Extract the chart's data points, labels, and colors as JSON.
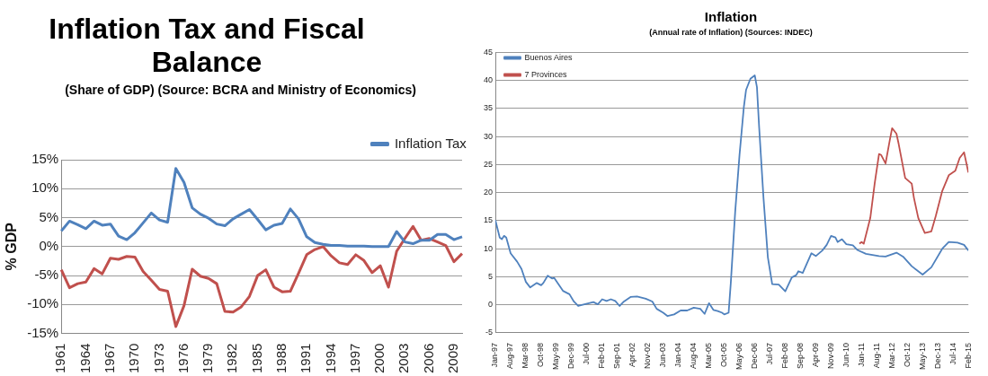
{
  "chart_data": [
    {
      "type": "line",
      "title": "Inflation Tax and Fiscal Balance",
      "subtitle": "(Share of GDP) (Source: BCRA and Ministry of Economics)",
      "ylabel": "% GDP",
      "categories": [
        "1961",
        null,
        null,
        "1964",
        null,
        null,
        "1967",
        null,
        null,
        "1970",
        null,
        null,
        "1973",
        null,
        null,
        "1976",
        null,
        null,
        "1979",
        null,
        null,
        "1982",
        null,
        null,
        "1985",
        null,
        null,
        "1988",
        null,
        null,
        "1991",
        null,
        null,
        "1994",
        null,
        null,
        "1997",
        null,
        null,
        "2000",
        null,
        null,
        "2003",
        null,
        null,
        "2006",
        null,
        null,
        "2009",
        null
      ],
      "series": [
        {
          "name": "Inflation Tax",
          "color": "#4f81bd",
          "values": [
            2.7,
            4.4,
            3.8,
            3.1,
            4.4,
            3.7,
            3.9,
            1.8,
            1.2,
            2.4,
            4.1,
            5.8,
            4.6,
            4.2,
            13.5,
            11.1,
            6.7,
            5.6,
            4.9,
            3.9,
            3.6,
            4.8,
            5.6,
            6.4,
            4.7,
            2.9,
            3.7,
            4.0,
            6.5,
            4.8,
            1.7,
            0.7,
            0.4,
            0.2,
            0.2,
            0.1,
            0.1,
            0.1,
            0,
            0,
            0,
            2.6,
            0.8,
            0.5,
            1.1,
            1.1,
            2.1,
            2.1,
            1.2,
            1.7
          ]
        },
        {
          "color": "#c0504d",
          "values": [
            -4.0,
            -7.1,
            -6.4,
            -6.1,
            -3.8,
            -4.7,
            -2.0,
            -2.2,
            -1.7,
            -1.8,
            -4.3,
            -5.8,
            -7.4,
            -7.7,
            -13.8,
            -10.2,
            -3.9,
            -5.1,
            -5.5,
            -6.4,
            -11.2,
            -11.3,
            -10.4,
            -8.6,
            -5.0,
            -4.0,
            -7.0,
            -7.8,
            -7.7,
            -4.6,
            -1.4,
            -0.5,
            0,
            -1.6,
            -2.8,
            -3.1,
            -1.4,
            -2.4,
            -4.5,
            -3.3,
            -7.0,
            -0.8,
            1.4,
            3.5,
            1.1,
            1.4,
            0.8,
            0.2,
            -2.6,
            -1.2
          ]
        }
      ],
      "ylim": [
        -15,
        15
      ],
      "yticks": [
        {
          "value": -15,
          "label": "-15%"
        },
        {
          "value": -10,
          "label": "-10%"
        },
        {
          "value": -5,
          "label": "-5%"
        },
        {
          "value": 0,
          "label": "0%"
        },
        {
          "value": 5,
          "label": "5%"
        },
        {
          "value": 10,
          "label": "10%"
        },
        {
          "value": 15,
          "label": "15%"
        }
      ],
      "grid": "y",
      "legend": "top right",
      "marker": "none",
      "line_style": "solid"
    },
    {
      "type": "line",
      "title": "Inflation",
      "subtitle": "(Annual rate of Inflation) (Sources: INDEC)",
      "series": [
        {
          "name": "Buenos Aires",
          "color": "#4f81bd",
          "x": [
            "1997-01",
            "1997-03",
            "1997-04",
            "1997-05",
            "1997-06",
            "1997-08",
            "1997-11",
            "1998-01",
            "1998-03",
            "1998-05",
            "1998-08",
            "1998-10",
            "1998-11",
            "1999-01",
            "1999-03",
            "1999-04",
            "1999-08",
            "1999-11",
            "2000-01",
            "2000-03",
            "2000-05",
            "2000-10",
            "2000-12",
            "2001-02",
            "2001-04",
            "2001-06",
            "2001-08",
            "2001-10",
            "2001-12",
            "2002-03",
            "2002-06",
            "2002-10",
            "2003-01",
            "2003-03",
            "2003-06",
            "2003-08",
            "2003-11",
            "2004-02",
            "2004-05",
            "2004-08",
            "2004-11",
            "2005-01",
            "2005-03",
            "2005-05",
            "2005-07",
            "2005-09",
            "2005-10",
            "2005-12",
            "2006-01",
            "2006-03",
            "2006-05",
            "2006-07",
            "2006-08",
            "2006-10",
            "2006-12",
            "2007-01",
            "2007-02",
            "2007-04",
            "2007-06",
            "2007-08",
            "2007-11",
            "2008-02",
            "2008-05",
            "2008-07",
            "2008-08",
            "2008-10",
            "2009-02",
            "2009-04",
            "2009-07",
            "2009-09",
            "2009-11",
            "2010-01",
            "2010-02",
            "2010-04",
            "2010-06",
            "2010-09",
            "2010-11",
            "2011-03",
            "2011-09",
            "2011-12",
            "2012-05",
            "2012-08",
            "2012-12",
            "2013-05",
            "2013-09",
            "2014-02",
            "2014-05",
            "2014-09",
            "2014-12",
            "2015-02"
          ],
          "values": [
            15.1,
            12.0,
            11.7,
            12.3,
            12.0,
            9.2,
            7.7,
            6.4,
            4.1,
            3.1,
            3.9,
            3.5,
            3.9,
            5.2,
            4.7,
            4.8,
            2.5,
            1.9,
            0.6,
            -0.2,
            0,
            0.5,
            0.1,
            1.0,
            0.7,
            1.0,
            0.7,
            -0.2,
            0.6,
            1.4,
            1.5,
            1.1,
            0.6,
            -0.7,
            -1.4,
            -2.0,
            -1.7,
            -1.0,
            -1.0,
            -0.5,
            -0.7,
            -1.6,
            0.3,
            -0.9,
            -1.1,
            -1.4,
            -1.7,
            -1.4,
            3.9,
            16.5,
            26.7,
            35.3,
            38.3,
            40.3,
            40.9,
            38.8,
            31.7,
            19.1,
            8.5,
            3.7,
            3.6,
            2.4,
            4.9,
            5.3,
            6.0,
            5.7,
            9.2,
            8.7,
            9.7,
            10.7,
            12.3,
            12.0,
            11.2,
            11.7,
            10.8,
            10.6,
            9.8,
            9.1,
            8.7,
            8.6,
            9.3,
            8.6,
            6.9,
            5.4,
            6.7,
            10.0,
            11.2,
            11.1,
            10.7,
            9.7
          ]
        },
        {
          "name": "7 Provinces",
          "color": "#c0504d",
          "x": [
            "2010-12",
            "2011-01",
            "2011-02",
            "2011-05",
            "2011-07",
            "2011-09",
            "2011-10",
            "2011-12",
            "2012-02",
            "2012-03",
            "2012-05",
            "2012-06",
            "2012-09",
            "2012-12",
            "2013-01",
            "2013-03",
            "2013-06",
            "2013-09",
            "2013-11",
            "2014-02",
            "2014-05",
            "2014-08",
            "2014-10",
            "2014-12",
            "2015-02"
          ],
          "values": [
            10.9,
            11.2,
            10.9,
            15.5,
            21.6,
            26.9,
            26.7,
            25.2,
            29.5,
            31.5,
            30.5,
            28.7,
            22.6,
            21.6,
            19.1,
            15.5,
            12.8,
            13.1,
            15.8,
            20.3,
            23.1,
            23.9,
            26.2,
            27.2,
            23.6
          ]
        }
      ],
      "xlim": [
        "1997-01",
        "2015-02"
      ],
      "xticks": [
        {
          "value": "1997-01",
          "label": "Jan-97"
        },
        {
          "value": "1997-08",
          "label": "Aug-97"
        },
        {
          "value": "1998-03",
          "label": "Mar-98"
        },
        {
          "value": "1998-10",
          "label": "Oct-98"
        },
        {
          "value": "1999-05",
          "label": "May-99"
        },
        {
          "value": "1999-12",
          "label": "Dec-99"
        },
        {
          "value": "2000-07",
          "label": "Jul-00"
        },
        {
          "value": "2001-02",
          "label": "Feb-01"
        },
        {
          "value": "2001-09",
          "label": "Sep-01"
        },
        {
          "value": "2002-04",
          "label": "Apr-02"
        },
        {
          "value": "2002-11",
          "label": "Nov-02"
        },
        {
          "value": "2003-06",
          "label": "Jun-03"
        },
        {
          "value": "2004-01",
          "label": "Jan-04"
        },
        {
          "value": "2004-08",
          "label": "Aug-04"
        },
        {
          "value": "2005-03",
          "label": "Mar-05"
        },
        {
          "value": "2005-10",
          "label": "Oct-05"
        },
        {
          "value": "2006-05",
          "label": "May-06"
        },
        {
          "value": "2006-12",
          "label": "Dec-06"
        },
        {
          "value": "2007-07",
          "label": "Jul-07"
        },
        {
          "value": "2008-02",
          "label": "Feb-08"
        },
        {
          "value": "2008-09",
          "label": "Sep-08"
        },
        {
          "value": "2009-04",
          "label": "Apr-09"
        },
        {
          "value": "2009-11",
          "label": "Nov-09"
        },
        {
          "value": "2010-06",
          "label": "Jun-10"
        },
        {
          "value": "2011-01",
          "label": "Jan-11"
        },
        {
          "value": "2011-08",
          "label": "Aug-11"
        },
        {
          "value": "2012-03",
          "label": "Mar-12"
        },
        {
          "value": "2012-10",
          "label": "Oct-12"
        },
        {
          "value": "2013-05",
          "label": "May-13"
        },
        {
          "value": "2013-12",
          "label": "Dec-13"
        },
        {
          "value": "2014-07",
          "label": "Jul-14"
        },
        {
          "value": "2015-02",
          "label": "Feb-15"
        }
      ],
      "ylim": [
        -5,
        45
      ],
      "yticks": [
        -5,
        0,
        5,
        10,
        15,
        20,
        25,
        30,
        35,
        40,
        45
      ],
      "grid": "y",
      "legend": "top left",
      "marker": "none",
      "line_style": "solid"
    }
  ]
}
